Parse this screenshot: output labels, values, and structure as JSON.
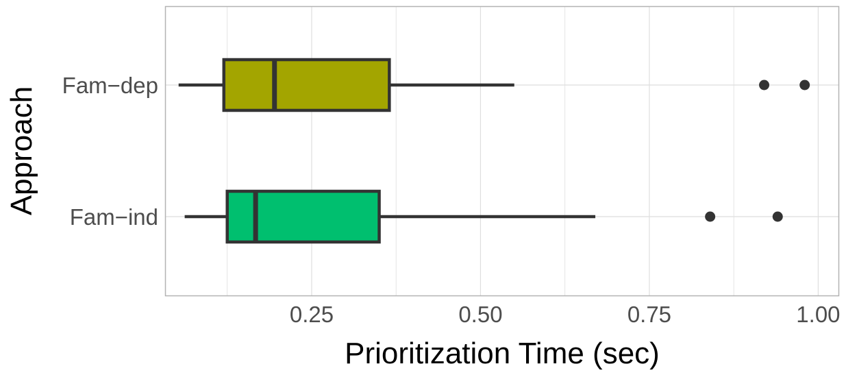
{
  "chart_data": {
    "type": "boxplot",
    "orientation": "horizontal",
    "title": "",
    "xlabel": "Prioritization Time (sec)",
    "ylabel": "Approach",
    "xlim": [
      0.034,
      1.03
    ],
    "xticks": [
      0.25,
      0.5,
      0.75,
      1.0
    ],
    "xtick_labels": [
      "0.25",
      "0.50",
      "0.75",
      "1.00"
    ],
    "grid": true,
    "legend": "none",
    "categories": [
      "Fam−dep",
      "Fam−ind"
    ],
    "series": [
      {
        "category": "Fam−dep",
        "whisker_low": 0.053,
        "q1": 0.12,
        "median": 0.195,
        "q3": 0.365,
        "whisker_high": 0.55,
        "outliers": [
          0.92,
          0.98
        ],
        "color": "#a3a500"
      },
      {
        "category": "Fam−ind",
        "whisker_low": 0.062,
        "q1": 0.125,
        "median": 0.167,
        "q3": 0.35,
        "whisker_high": 0.67,
        "outliers": [
          0.84,
          0.94
        ],
        "color": "#00bf6f"
      }
    ],
    "colors": {
      "box_outline": "#333333",
      "grid": "#dedede",
      "panel_border": "#b3b3b3"
    }
  }
}
